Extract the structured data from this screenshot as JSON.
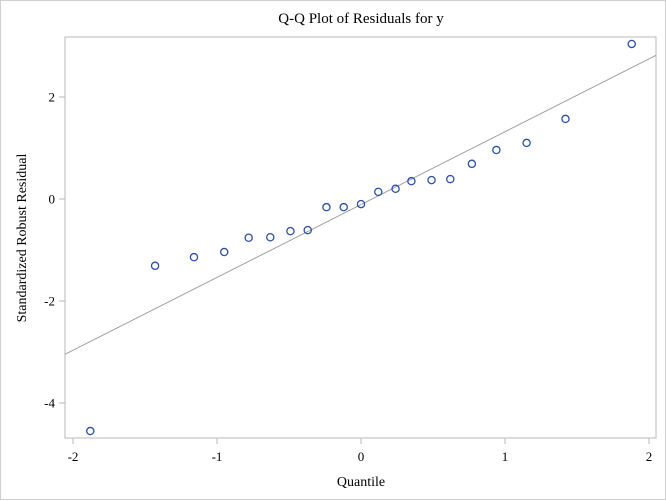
{
  "chart_data": {
    "type": "scatter",
    "title": "Q-Q Plot of Residuals for y",
    "xlabel": "Quantile",
    "ylabel": "Standardized Robust Residual",
    "xlim": [
      -2.06,
      2.04
    ],
    "ylim": [
      -4.75,
      3.17
    ],
    "x_ticks": [
      -2,
      -1,
      0,
      1,
      2
    ],
    "y_ticks": [
      2,
      0,
      -2,
      -4
    ],
    "grid": false,
    "legend": null,
    "points": {
      "x": [
        -1.88,
        -1.43,
        -1.16,
        -0.95,
        -0.78,
        -0.63,
        -0.49,
        -0.37,
        -0.24,
        -0.12,
        0.0,
        0.12,
        0.24,
        0.35,
        0.49,
        0.62,
        0.77,
        0.94,
        1.15,
        1.42,
        1.88
      ],
      "y": [
        -4.55,
        -1.31,
        -1.14,
        -1.04,
        -0.76,
        -0.75,
        -0.63,
        -0.61,
        -0.16,
        -0.16,
        -0.1,
        0.14,
        0.2,
        0.35,
        0.37,
        0.39,
        0.69,
        0.96,
        1.1,
        1.57,
        3.04
      ]
    },
    "reference_line": {
      "intercept": -0.1,
      "slope": 1.43
    },
    "colors": {
      "marker": "#2a4fa8",
      "reference_line": "#a0a0a0",
      "frame": "#b8b8b8"
    }
  },
  "labels": {
    "title": "Q-Q Plot of Residuals for y",
    "xlabel": "Quantile",
    "ylabel": "Standardized Robust Residual",
    "x_tick_labels": [
      "-2",
      "-1",
      "0",
      "1",
      "2"
    ],
    "y_tick_labels": [
      "2",
      "0",
      "-2",
      "-4"
    ]
  }
}
